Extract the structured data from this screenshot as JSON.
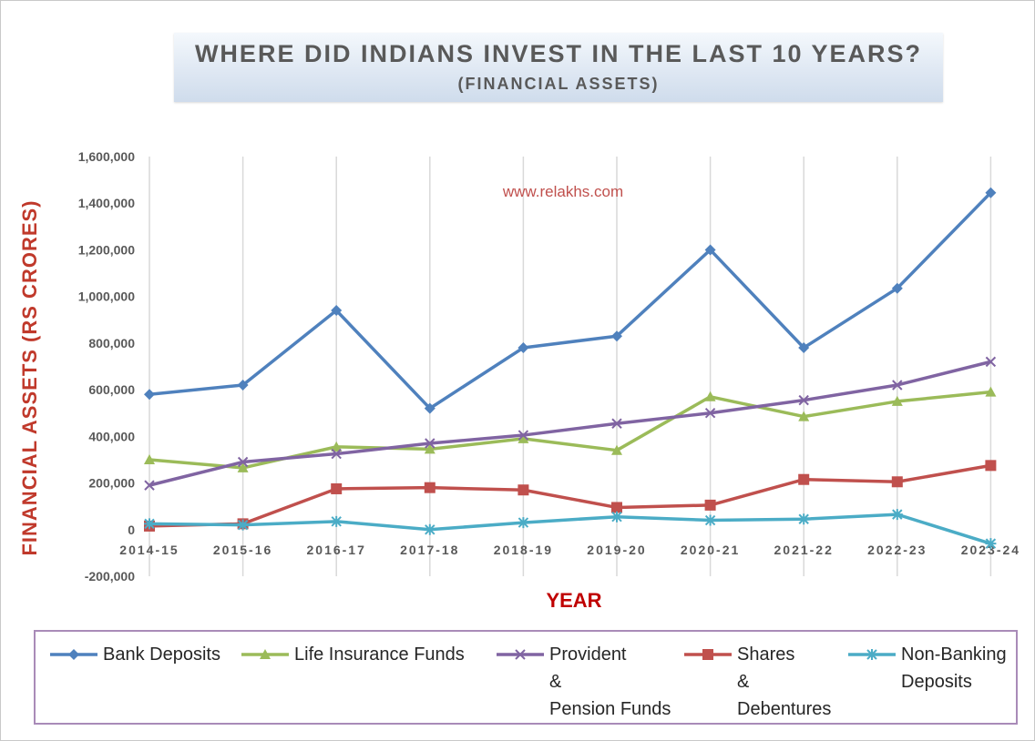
{
  "title": "WHERE DID INDIANS INVEST IN THE LAST 10 YEARS?",
  "subtitle": "(FINANCIAL ASSETS)",
  "watermark": "www.relakhs.com",
  "chart_data": {
    "type": "line",
    "title": "WHERE DID INDIANS INVEST IN THE LAST 10 YEARS?",
    "subtitle": "(FINANCIAL ASSETS)",
    "xlabel": "YEAR",
    "ylabel": "FINANCIAL ASSETS (RS CRORES)",
    "ylim": [
      -200000,
      1600000
    ],
    "yticks": [
      -200000,
      0,
      200000,
      400000,
      600000,
      800000,
      1000000,
      1200000,
      1400000,
      1600000
    ],
    "ytick_labels": [
      "-200,000",
      "0",
      "200,000",
      "400,000",
      "600,000",
      "800,000",
      "1,000,000",
      "1,200,000",
      "1,400,000",
      "1,600,000"
    ],
    "grid": "vertical",
    "legend_position": "bottom",
    "categories": [
      "2014-15",
      "2015-16",
      "2016-17",
      "2017-18",
      "2018-19",
      "2019-20",
      "2020-21",
      "2021-22",
      "2022-23",
      "2023-24"
    ],
    "series": [
      {
        "name": "Bank Deposits",
        "color": "#4f81bd",
        "marker": "diamond",
        "legend_lines": [
          "Bank Deposits"
        ],
        "values": [
          580000,
          620000,
          940000,
          520000,
          780000,
          830000,
          1200000,
          780000,
          1035000,
          1445000
        ]
      },
      {
        "name": "Life Insurance Funds",
        "color": "#9bbb59",
        "marker": "triangle",
        "legend_lines": [
          "Life Insurance Funds"
        ],
        "values": [
          300000,
          265000,
          355000,
          345000,
          390000,
          340000,
          570000,
          485000,
          550000,
          590000
        ]
      },
      {
        "name": "Provident & Pension Funds",
        "color": "#8064a2",
        "marker": "x",
        "legend_lines": [
          "Provident",
          "&",
          "Pension Funds"
        ],
        "values": [
          190000,
          290000,
          325000,
          370000,
          405000,
          455000,
          500000,
          555000,
          620000,
          720000
        ]
      },
      {
        "name": "Shares & Debentures",
        "color": "#c0504d",
        "marker": "square",
        "legend_lines": [
          "Shares",
          "&",
          "Debentures"
        ],
        "values": [
          15000,
          25000,
          175000,
          180000,
          170000,
          95000,
          105000,
          215000,
          205000,
          275000
        ]
      },
      {
        "name": "Non-Banking Deposits",
        "color": "#4bacc6",
        "marker": "star",
        "legend_lines": [
          "Non-Banking",
          "Deposits"
        ],
        "values": [
          25000,
          20000,
          35000,
          0,
          30000,
          55000,
          40000,
          45000,
          65000,
          -60000
        ]
      }
    ]
  }
}
